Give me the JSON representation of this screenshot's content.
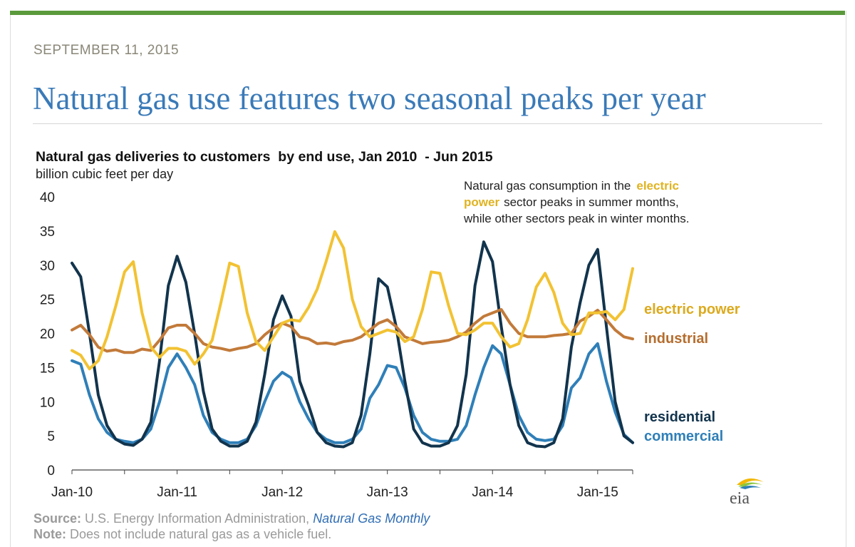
{
  "article": {
    "date": "SEPTEMBER 11, 2015",
    "headline": "Natural gas use features two seasonal peaks per year"
  },
  "chart_data": {
    "type": "line",
    "title": "Natural gas deliveries to customers  by end use, Jan 2010  - Jun 2015",
    "ylabel": "billion cubic feet per day",
    "xlabel": "",
    "ylim": [
      0,
      40
    ],
    "yticks": [
      "0",
      "5",
      "10",
      "15",
      "20",
      "25",
      "30",
      "35",
      "40"
    ],
    "xtick_labels": [
      "Jan-10",
      "Jan-11",
      "Jan-12",
      "Jan-13",
      "Jan-14",
      "Jan-15"
    ],
    "x_start": "Jan 2010",
    "x_end": "Jun 2015",
    "annotation": {
      "text_1": "Natural gas consumption in the",
      "highlight_1": "electric",
      "highlight_2": "power",
      "text_2": "sector peaks in summer months,",
      "text_3": "while other sectors peak in winter months."
    },
    "series": [
      {
        "name": "electric power",
        "color": "#f2c232",
        "values": [
          17.5,
          16.8,
          14.8,
          16.0,
          19.5,
          24.0,
          29.0,
          30.5,
          23.0,
          18.0,
          16.5,
          17.8,
          17.8,
          17.4,
          15.5,
          17.0,
          19.0,
          24.5,
          30.3,
          29.8,
          23.0,
          18.8,
          17.5,
          19.5,
          21.5,
          22.0,
          21.8,
          23.8,
          26.5,
          30.5,
          34.9,
          32.5,
          25.0,
          21.0,
          19.5,
          20.0,
          20.5,
          20.2,
          18.8,
          19.5,
          23.5,
          29.0,
          28.8,
          24.0,
          20.0,
          19.8,
          20.5,
          21.5,
          21.5,
          19.5,
          18.0,
          18.5,
          22.0,
          26.8,
          28.8,
          26.0,
          21.5,
          19.8,
          20.0,
          23.0,
          23.0,
          23.2,
          22.0,
          23.5,
          29.5
        ]
      },
      {
        "name": "industrial",
        "color": "#c27a3a",
        "values": [
          20.5,
          21.2,
          19.8,
          18.0,
          17.4,
          17.6,
          17.2,
          17.2,
          17.7,
          17.5,
          19.0,
          20.8,
          21.2,
          21.2,
          20.0,
          18.5,
          18.0,
          17.8,
          17.5,
          17.8,
          18.0,
          18.5,
          19.8,
          20.8,
          21.5,
          21.0,
          19.5,
          19.2,
          18.5,
          18.6,
          18.4,
          18.8,
          19.0,
          19.5,
          20.5,
          21.5,
          22.0,
          21.0,
          19.5,
          19.0,
          18.5,
          18.7,
          18.8,
          19.0,
          19.5,
          20.2,
          21.5,
          22.5,
          23.0,
          23.5,
          21.5,
          20.0,
          19.5,
          19.5,
          19.5,
          19.7,
          19.8,
          20.0,
          21.8,
          22.5,
          23.4,
          22.0,
          20.5,
          19.5,
          19.2
        ]
      },
      {
        "name": "residential",
        "color": "#12344d",
        "values": [
          30.3,
          28.3,
          20.0,
          11.0,
          6.5,
          4.5,
          3.8,
          3.6,
          4.5,
          7.0,
          16.0,
          27.0,
          31.3,
          27.5,
          20.0,
          11.5,
          6.0,
          4.2,
          3.5,
          3.5,
          4.2,
          7.0,
          14.0,
          22.0,
          25.5,
          22.5,
          13.0,
          9.5,
          5.5,
          4.0,
          3.5,
          3.4,
          4.0,
          8.0,
          17.0,
          28.0,
          26.8,
          21.0,
          13.0,
          6.0,
          4.0,
          3.5,
          3.5,
          4.0,
          6.5,
          14.0,
          27.0,
          33.4,
          30.5,
          21.0,
          12.5,
          6.5,
          4.0,
          3.5,
          3.4,
          4.0,
          7.5,
          18.0,
          24.5,
          30.0,
          32.3,
          21.0,
          10.0,
          5.0,
          4.0
        ]
      },
      {
        "name": "commercial",
        "color": "#2f7fb8",
        "values": [
          16.0,
          15.5,
          11.0,
          7.5,
          5.5,
          4.5,
          4.2,
          4.0,
          4.5,
          6.0,
          10.0,
          15.0,
          17.0,
          15.0,
          12.5,
          8.0,
          5.5,
          4.5,
          4.0,
          4.0,
          4.5,
          6.5,
          10.0,
          13.0,
          14.3,
          13.5,
          10.0,
          7.5,
          5.5,
          4.5,
          4.0,
          4.0,
          4.5,
          6.0,
          10.5,
          12.5,
          15.3,
          15.0,
          12.0,
          8.0,
          5.5,
          4.5,
          4.2,
          4.2,
          4.5,
          6.5,
          11.0,
          15.0,
          18.2,
          17.0,
          12.5,
          8.0,
          5.5,
          4.5,
          4.3,
          4.5,
          6.5,
          12.0,
          13.5,
          17.0,
          18.5,
          13.0,
          8.5,
          5.2,
          4.0
        ]
      }
    ],
    "series_labels": {
      "electric_power": "electric power",
      "industrial": "industrial",
      "residential": "residential",
      "commercial": "commercial"
    }
  },
  "footer": {
    "source_label": "Source:",
    "source_text": " U.S. Energy Information Administration, ",
    "source_publication": "Natural Gas Monthly",
    "note_label": "Note:",
    "note_text": " Does not include natural gas as a vehicle fuel."
  },
  "logo": {
    "text": "eia"
  },
  "colors": {
    "accent_bar": "#5a9a3c",
    "headline": "#3a7ab8",
    "date": "#8a8778"
  }
}
